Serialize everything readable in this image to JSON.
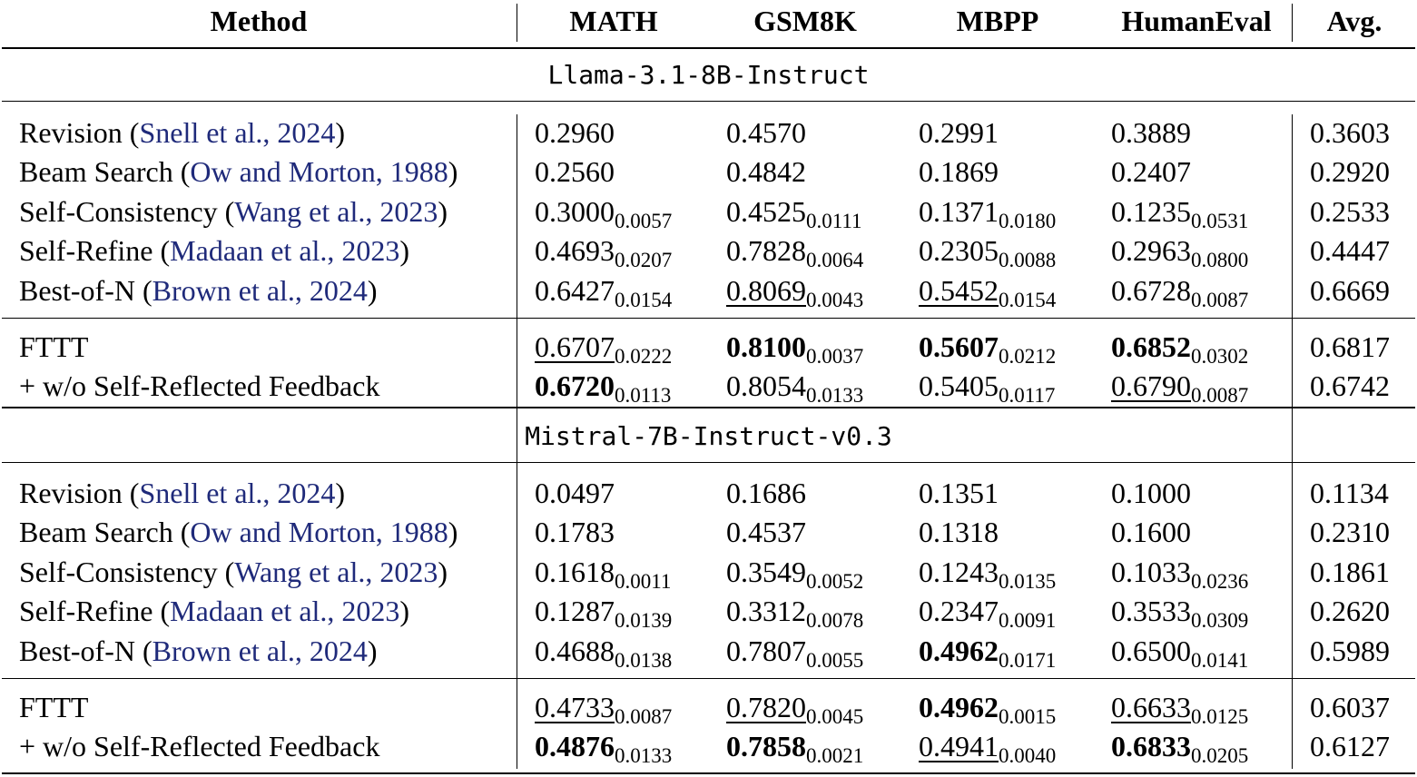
{
  "header": {
    "method": "Method",
    "cols": [
      "MATH",
      "GSM8K",
      "MBPP",
      "HumanEval"
    ],
    "avg": "Avg."
  },
  "sections": [
    {
      "model": "Llama-3.1-8B-Instruct",
      "baselines": [
        {
          "method": "Revision (",
          "cite": "Snell et al., 2024",
          "close": ")",
          "cells": [
            {
              "v": "0.2960",
              "s": ""
            },
            {
              "v": "0.4570",
              "s": ""
            },
            {
              "v": "0.2991",
              "s": ""
            },
            {
              "v": "0.3889",
              "s": ""
            }
          ],
          "avg": "0.3603"
        },
        {
          "method": "Beam Search (",
          "cite": "Ow and Morton, 1988",
          "close": ")",
          "cells": [
            {
              "v": "0.2560",
              "s": ""
            },
            {
              "v": "0.4842",
              "s": ""
            },
            {
              "v": "0.1869",
              "s": ""
            },
            {
              "v": "0.2407",
              "s": ""
            }
          ],
          "avg": "0.2920"
        },
        {
          "method": "Self-Consistency (",
          "cite": "Wang et al., 2023",
          "close": ")",
          "cells": [
            {
              "v": "0.3000",
              "s": "0.0057"
            },
            {
              "v": "0.4525",
              "s": "0.0111"
            },
            {
              "v": "0.1371",
              "s": "0.0180"
            },
            {
              "v": "0.1235",
              "s": "0.0531"
            }
          ],
          "avg": "0.2533"
        },
        {
          "method": "Self-Refine (",
          "cite": "Madaan et al., 2023",
          "close": ")",
          "cells": [
            {
              "v": "0.4693",
              "s": "0.0207"
            },
            {
              "v": "0.7828",
              "s": "0.0064"
            },
            {
              "v": "0.2305",
              "s": "0.0088"
            },
            {
              "v": "0.2963",
              "s": "0.0800"
            }
          ],
          "avg": "0.4447"
        },
        {
          "method": "Best-of-N (",
          "cite": "Brown et al., 2024",
          "close": ")",
          "cells": [
            {
              "v": "0.6427",
              "s": "0.0154"
            },
            {
              "v": "0.8069",
              "s": "0.0043",
              "u": true
            },
            {
              "v": "0.5452",
              "s": "0.0154",
              "u": true
            },
            {
              "v": "0.6728",
              "s": "0.0087"
            }
          ],
          "avg": "0.6669"
        }
      ],
      "ours": [
        {
          "method": "FTTT",
          "cite": "",
          "close": "",
          "cells": [
            {
              "v": "0.6707",
              "s": "0.0222",
              "u": true
            },
            {
              "v": "0.8100",
              "s": "0.0037",
              "b": true
            },
            {
              "v": "0.5607",
              "s": "0.0212",
              "b": true
            },
            {
              "v": "0.6852",
              "s": "0.0302",
              "b": true
            }
          ],
          "avg": "0.6817"
        },
        {
          "method": "+ w/o Self-Reflected Feedback",
          "cite": "",
          "close": "",
          "cells": [
            {
              "v": "0.6720",
              "s": "0.0113",
              "b": true
            },
            {
              "v": "0.8054",
              "s": "0.0133"
            },
            {
              "v": "0.5405",
              "s": "0.0117"
            },
            {
              "v": "0.6790",
              "s": "0.0087",
              "u": true
            }
          ],
          "avg": "0.6742"
        }
      ]
    },
    {
      "model": "Mistral-7B-Instruct-v0.3",
      "baselines": [
        {
          "method": "Revision (",
          "cite": "Snell et al., 2024",
          "close": ")",
          "cells": [
            {
              "v": "0.0497",
              "s": ""
            },
            {
              "v": "0.1686",
              "s": ""
            },
            {
              "v": "0.1351",
              "s": ""
            },
            {
              "v": "0.1000",
              "s": ""
            }
          ],
          "avg": "0.1134"
        },
        {
          "method": "Beam Search (",
          "cite": "Ow and Morton, 1988",
          "close": ")",
          "cells": [
            {
              "v": "0.1783",
              "s": ""
            },
            {
              "v": "0.4537",
              "s": ""
            },
            {
              "v": "0.1318",
              "s": ""
            },
            {
              "v": "0.1600",
              "s": ""
            }
          ],
          "avg": "0.2310"
        },
        {
          "method": "Self-Consistency (",
          "cite": "Wang et al., 2023",
          "close": ")",
          "cells": [
            {
              "v": "0.1618",
              "s": "0.0011"
            },
            {
              "v": "0.3549",
              "s": "0.0052"
            },
            {
              "v": "0.1243",
              "s": "0.0135"
            },
            {
              "v": "0.1033",
              "s": "0.0236"
            }
          ],
          "avg": "0.1861"
        },
        {
          "method": "Self-Refine (",
          "cite": "Madaan et al., 2023",
          "close": ")",
          "cells": [
            {
              "v": "0.1287",
              "s": "0.0139"
            },
            {
              "v": "0.3312",
              "s": "0.0078"
            },
            {
              "v": "0.2347",
              "s": "0.0091"
            },
            {
              "v": "0.3533",
              "s": "0.0309"
            }
          ],
          "avg": "0.2620"
        },
        {
          "method": "Best-of-N (",
          "cite": "Brown et al., 2024",
          "close": ")",
          "cells": [
            {
              "v": "0.4688",
              "s": "0.0138"
            },
            {
              "v": "0.7807",
              "s": "0.0055"
            },
            {
              "v": "0.4962",
              "s": "0.0171",
              "b": true
            },
            {
              "v": "0.6500",
              "s": "0.0141"
            }
          ],
          "avg": "0.5989"
        }
      ],
      "ours": [
        {
          "method": "FTTT",
          "cite": "",
          "close": "",
          "cells": [
            {
              "v": "0.4733",
              "s": "0.0087",
              "u": true
            },
            {
              "v": "0.7820",
              "s": "0.0045",
              "u": true
            },
            {
              "v": "0.4962",
              "s": "0.0015",
              "b": true
            },
            {
              "v": "0.6633",
              "s": "0.0125",
              "u": true
            }
          ],
          "avg": "0.6037"
        },
        {
          "method": "+ w/o Self-Reflected Feedback",
          "cite": "",
          "close": "",
          "cells": [
            {
              "v": "0.4876",
              "s": "0.0133",
              "b": true
            },
            {
              "v": "0.7858",
              "s": "0.0021",
              "b": true
            },
            {
              "v": "0.4941",
              "s": "0.0040",
              "u": true
            },
            {
              "v": "0.6833",
              "s": "0.0205",
              "b": true
            }
          ],
          "avg": "0.6127"
        }
      ]
    }
  ]
}
